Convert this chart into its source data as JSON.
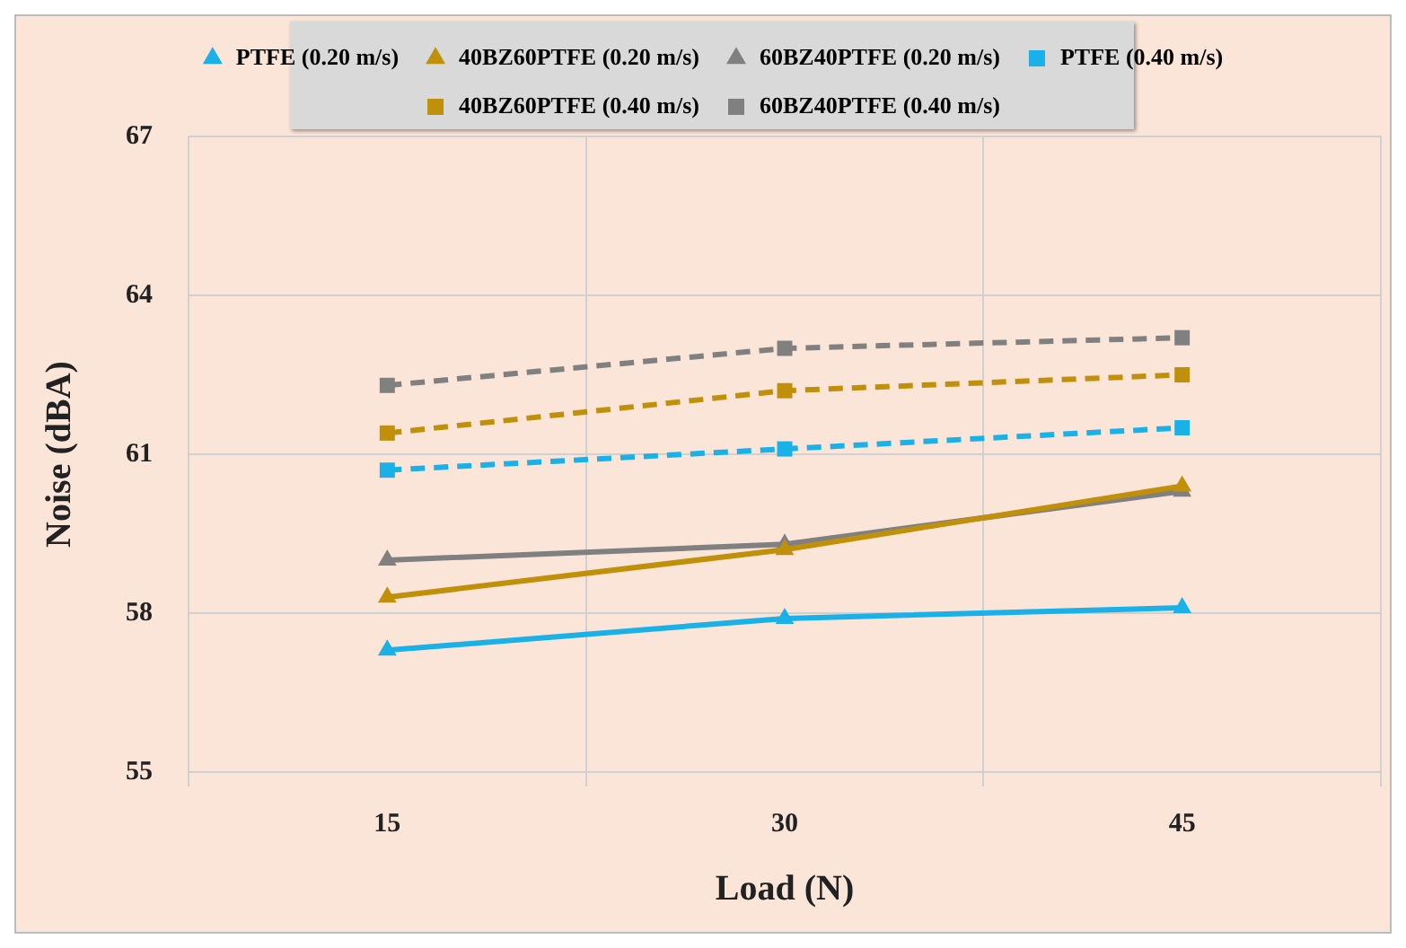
{
  "chart_data": {
    "type": "line",
    "xlabel": "Load (N)",
    "ylabel": "Noise (dBA)",
    "categories": [
      "15",
      "30",
      "45"
    ],
    "ylim": [
      55,
      67
    ],
    "yticks": [
      55,
      58,
      61,
      64,
      67
    ],
    "grid": true,
    "legend": "top",
    "series": [
      {
        "name": "PTFE (0.20 m/s)",
        "color": "#1ab0e8",
        "values": [
          57.3,
          57.9,
          58.1
        ],
        "marker": "triangle",
        "line_style": "solid"
      },
      {
        "name": "40BZ60PTFE (0.20 m/s)",
        "color": "#c0900a",
        "values": [
          58.3,
          59.2,
          60.4
        ],
        "marker": "triangle",
        "line_style": "solid"
      },
      {
        "name": "60BZ40PTFE (0.20 m/s)",
        "color": "#808080",
        "values": [
          59.0,
          59.3,
          60.3
        ],
        "marker": "triangle",
        "line_style": "solid"
      },
      {
        "name": "PTFE (0.40 m/s)",
        "color": "#1ab0e8",
        "values": [
          60.7,
          61.1,
          61.5
        ],
        "marker": "square",
        "line_style": "dashed"
      },
      {
        "name": "40BZ60PTFE (0.40 m/s)",
        "color": "#c0900a",
        "values": [
          61.4,
          62.2,
          62.5
        ],
        "marker": "square",
        "line_style": "dashed"
      },
      {
        "name": "60BZ40PTFE (0.40 m/s)",
        "color": "#808080",
        "values": [
          62.3,
          63.0,
          63.2
        ],
        "marker": "square",
        "line_style": "dashed"
      }
    ]
  }
}
